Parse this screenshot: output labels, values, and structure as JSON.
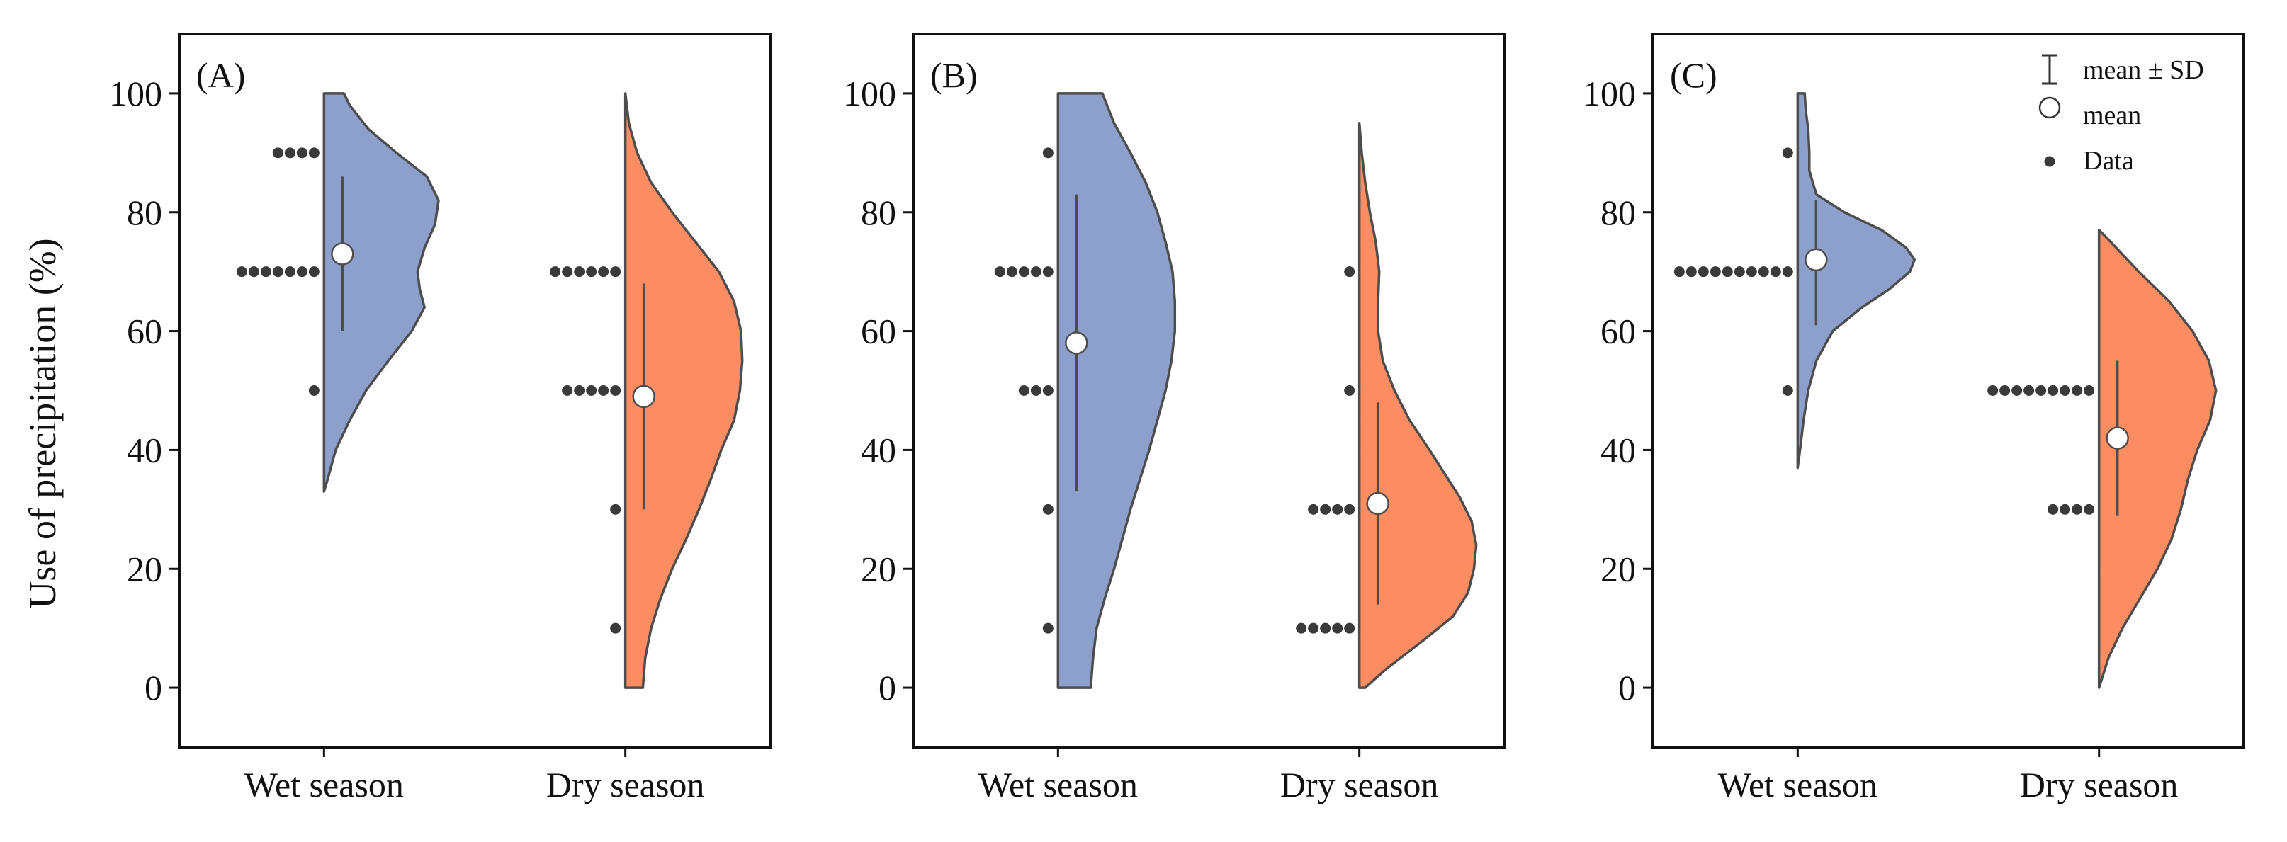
{
  "chart_data": {
    "type": "split-violin",
    "ylabel": "Use of precipitation (%)",
    "ylim": [
      -10,
      110
    ],
    "yticks": [
      0,
      20,
      40,
      60,
      80,
      100
    ],
    "categories": [
      "Wet season",
      "Dry season"
    ],
    "colors": {
      "Wet season": "#8da0cb",
      "Dry season": "#fc8d62",
      "outline": "#4d4d4d",
      "points": "#3a3a3a"
    },
    "legend": {
      "position": "top-right of panel C",
      "items": [
        {
          "symbol": "errorbar",
          "label": "mean ± SD"
        },
        {
          "symbol": "open-circle",
          "label": "mean"
        },
        {
          "symbol": "dot",
          "label": "Data"
        }
      ]
    },
    "panels": [
      {
        "label": "(A)",
        "series": [
          {
            "name": "Wet season",
            "mean": 73,
            "sd_low": 60,
            "sd_high": 86,
            "points": [
              {
                "value": 90,
                "count": 4
              },
              {
                "value": 70,
                "count": 7
              },
              {
                "value": 50,
                "count": 1
              }
            ],
            "density": [
              [
                33,
                0.0
              ],
              [
                35,
                0.03
              ],
              [
                40,
                0.1
              ],
              [
                45,
                0.22
              ],
              [
                50,
                0.36
              ],
              [
                55,
                0.55
              ],
              [
                60,
                0.75
              ],
              [
                64,
                0.86
              ],
              [
                67,
                0.82
              ],
              [
                70,
                0.8
              ],
              [
                74,
                0.86
              ],
              [
                78,
                0.95
              ],
              [
                82,
                0.98
              ],
              [
                86,
                0.88
              ],
              [
                90,
                0.62
              ],
              [
                94,
                0.38
              ],
              [
                98,
                0.22
              ],
              [
                100,
                0.17
              ]
            ]
          },
          {
            "name": "Dry season",
            "mean": 49,
            "sd_low": 30,
            "sd_high": 68,
            "points": [
              {
                "value": 70,
                "count": 6
              },
              {
                "value": 50,
                "count": 5
              },
              {
                "value": 30,
                "count": 1
              },
              {
                "value": 10,
                "count": 1
              }
            ],
            "density": [
              [
                0,
                0.15
              ],
              [
                5,
                0.17
              ],
              [
                10,
                0.22
              ],
              [
                15,
                0.3
              ],
              [
                20,
                0.4
              ],
              [
                25,
                0.52
              ],
              [
                30,
                0.63
              ],
              [
                35,
                0.73
              ],
              [
                40,
                0.82
              ],
              [
                45,
                0.93
              ],
              [
                50,
                0.98
              ],
              [
                55,
                1.0
              ],
              [
                60,
                0.99
              ],
              [
                65,
                0.93
              ],
              [
                70,
                0.8
              ],
              [
                75,
                0.6
              ],
              [
                80,
                0.4
              ],
              [
                85,
                0.22
              ],
              [
                90,
                0.1
              ],
              [
                95,
                0.03
              ],
              [
                100,
                0.0
              ]
            ]
          }
        ]
      },
      {
        "label": "(B)",
        "series": [
          {
            "name": "Wet season",
            "mean": 58,
            "sd_low": 33,
            "sd_high": 83,
            "points": [
              {
                "value": 90,
                "count": 1
              },
              {
                "value": 70,
                "count": 5
              },
              {
                "value": 50,
                "count": 3
              },
              {
                "value": 30,
                "count": 1
              },
              {
                "value": 10,
                "count": 1
              }
            ],
            "density": [
              [
                0,
                0.28
              ],
              [
                5,
                0.3
              ],
              [
                10,
                0.33
              ],
              [
                15,
                0.4
              ],
              [
                20,
                0.48
              ],
              [
                25,
                0.55
              ],
              [
                30,
                0.62
              ],
              [
                35,
                0.7
              ],
              [
                40,
                0.78
              ],
              [
                45,
                0.85
              ],
              [
                50,
                0.92
              ],
              [
                55,
                0.97
              ],
              [
                60,
                1.0
              ],
              [
                65,
                1.0
              ],
              [
                70,
                0.98
              ],
              [
                75,
                0.92
              ],
              [
                80,
                0.85
              ],
              [
                85,
                0.75
              ],
              [
                90,
                0.62
              ],
              [
                95,
                0.48
              ],
              [
                100,
                0.38
              ]
            ]
          },
          {
            "name": "Dry season",
            "mean": 31,
            "sd_low": 14,
            "sd_high": 48,
            "points": [
              {
                "value": 70,
                "count": 1
              },
              {
                "value": 50,
                "count": 1
              },
              {
                "value": 30,
                "count": 4
              },
              {
                "value": 10,
                "count": 5
              }
            ],
            "density": [
              [
                0,
                0.05
              ],
              [
                3,
                0.22
              ],
              [
                8,
                0.55
              ],
              [
                12,
                0.8
              ],
              [
                16,
                0.93
              ],
              [
                20,
                0.98
              ],
              [
                24,
                1.0
              ],
              [
                28,
                0.96
              ],
              [
                32,
                0.86
              ],
              [
                36,
                0.73
              ],
              [
                40,
                0.6
              ],
              [
                45,
                0.43
              ],
              [
                50,
                0.3
              ],
              [
                55,
                0.2
              ],
              [
                60,
                0.16
              ],
              [
                65,
                0.16
              ],
              [
                70,
                0.17
              ],
              [
                75,
                0.14
              ],
              [
                80,
                0.09
              ],
              [
                85,
                0.05
              ],
              [
                90,
                0.02
              ],
              [
                95,
                0.0
              ]
            ]
          }
        ]
      },
      {
        "label": "(C)",
        "series": [
          {
            "name": "Wet season",
            "mean": 72,
            "sd_low": 61,
            "sd_high": 82,
            "points": [
              {
                "value": 90,
                "count": 1
              },
              {
                "value": 70,
                "count": 10
              },
              {
                "value": 50,
                "count": 1
              }
            ],
            "density": [
              [
                37,
                0.0
              ],
              [
                40,
                0.02
              ],
              [
                45,
                0.05
              ],
              [
                50,
                0.09
              ],
              [
                55,
                0.16
              ],
              [
                60,
                0.3
              ],
              [
                64,
                0.55
              ],
              [
                67,
                0.78
              ],
              [
                70,
                0.96
              ],
              [
                72,
                1.0
              ],
              [
                74,
                0.93
              ],
              [
                77,
                0.72
              ],
              [
                80,
                0.4
              ],
              [
                83,
                0.16
              ],
              [
                87,
                0.1
              ],
              [
                90,
                0.1
              ],
              [
                94,
                0.09
              ],
              [
                97,
                0.07
              ],
              [
                100,
                0.06
              ]
            ]
          },
          {
            "name": "Dry season",
            "mean": 42,
            "sd_low": 29,
            "sd_high": 55,
            "points": [
              {
                "value": 50,
                "count": 9
              },
              {
                "value": 30,
                "count": 4
              }
            ],
            "density": [
              [
                0,
                0.0
              ],
              [
                5,
                0.08
              ],
              [
                10,
                0.2
              ],
              [
                15,
                0.35
              ],
              [
                20,
                0.5
              ],
              [
                25,
                0.62
              ],
              [
                30,
                0.7
              ],
              [
                35,
                0.76
              ],
              [
                40,
                0.84
              ],
              [
                45,
                0.95
              ],
              [
                50,
                1.0
              ],
              [
                55,
                0.94
              ],
              [
                60,
                0.8
              ],
              [
                65,
                0.6
              ],
              [
                70,
                0.34
              ],
              [
                75,
                0.1
              ],
              [
                77,
                0.0
              ]
            ]
          }
        ]
      }
    ]
  }
}
